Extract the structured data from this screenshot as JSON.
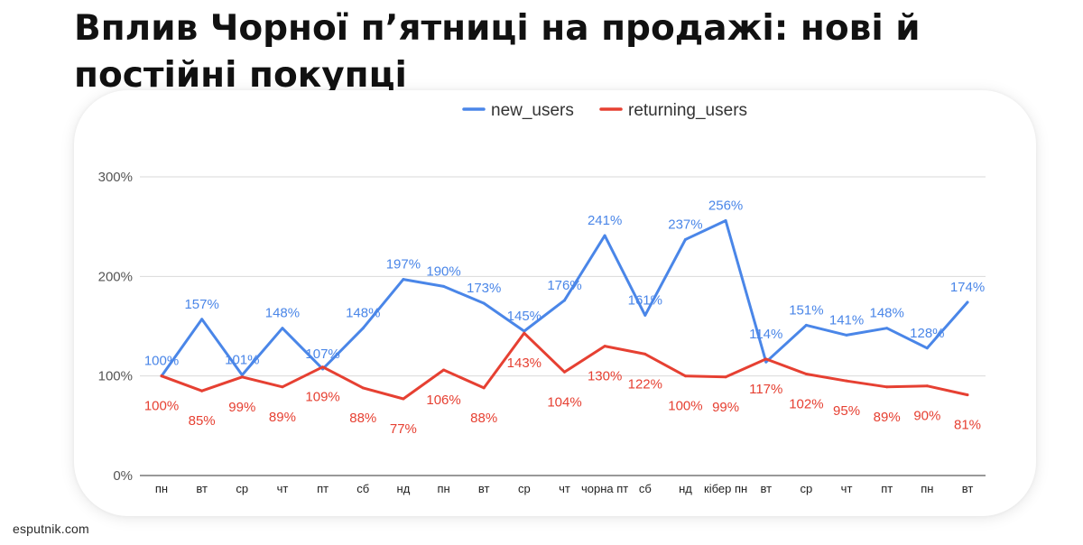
{
  "title": "Вплив Чорної п’ятниці на продажі: нові й постійні покупці",
  "footer": "esputnik.com",
  "colors": {
    "new_users": "#4a86e8",
    "returning_users": "#e64032",
    "grid": "#d9d9d9",
    "axis_text": "#555555"
  },
  "chart_data": {
    "type": "line",
    "title": "Вплив Чорної п’ятниці на продажі: нові й постійні покупці",
    "xlabel": "",
    "ylabel": "",
    "ylim": [
      0,
      300
    ],
    "yticks": [
      "0%",
      "100%",
      "200%",
      "300%"
    ],
    "legend_position": "top-center",
    "categories": [
      "пн",
      "вт",
      "ср",
      "чт",
      "пт",
      "сб",
      "нд",
      "пн",
      "вт",
      "ср",
      "чт",
      "чорна пт",
      "сб",
      "нд",
      "кібер пн",
      "вт",
      "ср",
      "чт",
      "пт",
      "пн",
      "вт"
    ],
    "series": [
      {
        "name": "new_users",
        "values": [
          100,
          157,
          101,
          148,
          107,
          148,
          197,
          190,
          173,
          145,
          176,
          241,
          161,
          237,
          256,
          114,
          151,
          141,
          148,
          128,
          174
        ],
        "labels": [
          "100%",
          "157%",
          "101%",
          "148%",
          "107%",
          "148%",
          "197%",
          "190%",
          "173%",
          "145%",
          "176%",
          "241%",
          "161%",
          "237%",
          "256%",
          "114%",
          "151%",
          "141%",
          "148%",
          "128%",
          "174%"
        ]
      },
      {
        "name": "returning_users",
        "values": [
          100,
          85,
          99,
          89,
          109,
          88,
          77,
          106,
          88,
          143,
          104,
          130,
          122,
          100,
          99,
          117,
          102,
          95,
          89,
          90,
          81
        ],
        "labels": [
          "100%",
          "85%",
          "99%",
          "89%",
          "109%",
          "88%",
          "77%",
          "106%",
          "88%",
          "143%",
          "104%",
          "130%",
          "122%",
          "100%",
          "99%",
          "117%",
          "102%",
          "95%",
          "89%",
          "90%",
          "81%"
        ]
      }
    ]
  }
}
